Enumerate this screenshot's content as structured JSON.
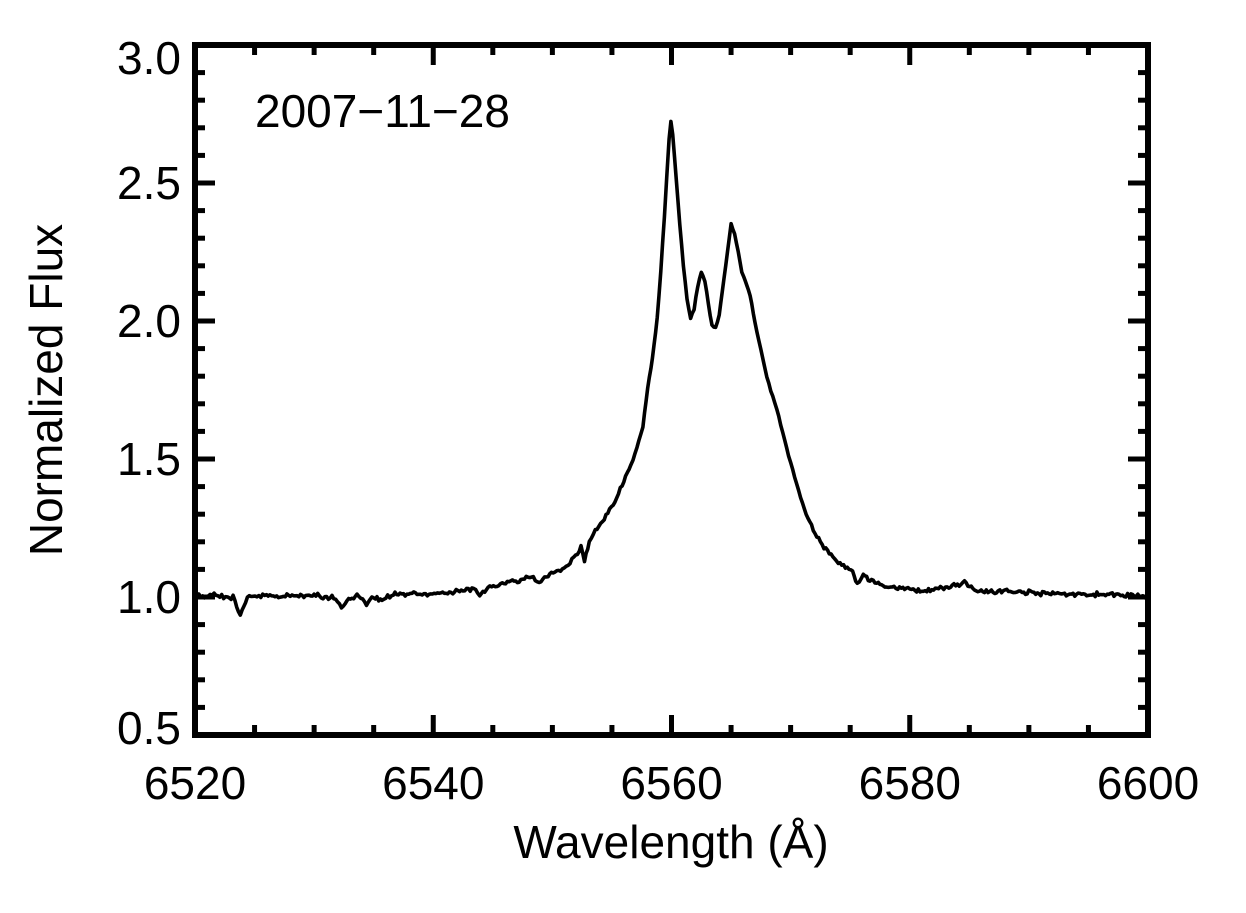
{
  "chart_data": {
    "type": "line",
    "title": "",
    "annotation": "2007−11−28",
    "xlabel": "Wavelength (Å)",
    "ylabel": "Normalized Flux",
    "xlim": [
      6520,
      6600
    ],
    "ylim": [
      0.5,
      3.0
    ],
    "x_major_ticks": [
      6520,
      6540,
      6560,
      6580,
      6600
    ],
    "x_tick_labels": [
      "6520",
      "6540",
      "6560",
      "6580",
      "6600"
    ],
    "x_minor_step": 5,
    "y_major_ticks": [
      0.5,
      1.0,
      1.5,
      2.0,
      2.5,
      3.0
    ],
    "y_tick_labels": [
      "0.5",
      "1.0",
      "1.5",
      "2.0",
      "2.5",
      "3.0"
    ],
    "y_minor_step": 0.1,
    "grid": false,
    "legend": null,
    "line_color": "#000000",
    "background_color": "#ffffff",
    "features": {
      "peaks": [
        {
          "wavelength": 6559.9,
          "flux": 2.72
        },
        {
          "wavelength": 6562.5,
          "flux": 2.18
        },
        {
          "wavelength": 6565.0,
          "flux": 2.35
        }
      ],
      "minima_between_peaks": [
        {
          "wavelength": 6561.6,
          "flux": 2.01
        },
        {
          "wavelength": 6563.6,
          "flux": 1.97
        }
      ],
      "continuum_level": 1.0
    },
    "noise": {
      "amplitude": 0.01,
      "seed": 20071128,
      "sample_step": 0.15
    },
    "series": [
      {
        "name": "spectrum",
        "anchors": [
          [
            6520.0,
            1.01
          ],
          [
            6520.8,
            1.005
          ],
          [
            6521.6,
            1.008
          ],
          [
            6522.4,
            1.002
          ],
          [
            6523.2,
            1.0
          ],
          [
            6523.8,
            0.94
          ],
          [
            6524.4,
            0.998
          ],
          [
            6525.2,
            1.003
          ],
          [
            6526.0,
            1.005
          ],
          [
            6527.0,
            1.0
          ],
          [
            6528.0,
            1.004
          ],
          [
            6529.0,
            1.006
          ],
          [
            6530.0,
            1.008
          ],
          [
            6530.9,
            1.0
          ],
          [
            6531.8,
            0.998
          ],
          [
            6532.3,
            0.962
          ],
          [
            6532.9,
            0.995
          ],
          [
            6533.6,
            1.005
          ],
          [
            6534.4,
            0.975
          ],
          [
            6535.0,
            1.002
          ],
          [
            6535.7,
            0.988
          ],
          [
            6536.5,
            1.008
          ],
          [
            6537.5,
            1.01
          ],
          [
            6538.5,
            1.012
          ],
          [
            6539.5,
            1.01
          ],
          [
            6540.5,
            1.015
          ],
          [
            6541.5,
            1.018
          ],
          [
            6542.5,
            1.02
          ],
          [
            6543.4,
            1.028
          ],
          [
            6543.9,
            1.008
          ],
          [
            6544.6,
            1.035
          ],
          [
            6545.5,
            1.045
          ],
          [
            6546.5,
            1.055
          ],
          [
            6547.5,
            1.065
          ],
          [
            6548.4,
            1.072
          ],
          [
            6548.9,
            1.05
          ],
          [
            6549.5,
            1.08
          ],
          [
            6550.2,
            1.088
          ],
          [
            6551.0,
            1.105
          ],
          [
            6551.8,
            1.14
          ],
          [
            6552.4,
            1.185
          ],
          [
            6552.7,
            1.125
          ],
          [
            6553.1,
            1.2
          ],
          [
            6553.6,
            1.24
          ],
          [
            6554.2,
            1.275
          ],
          [
            6554.8,
            1.315
          ],
          [
            6555.4,
            1.36
          ],
          [
            6556.0,
            1.42
          ],
          [
            6556.6,
            1.48
          ],
          [
            6557.1,
            1.54
          ],
          [
            6557.6,
            1.615
          ],
          [
            6558.0,
            1.76
          ],
          [
            6558.4,
            1.865
          ],
          [
            6558.8,
            2.01
          ],
          [
            6559.1,
            2.18
          ],
          [
            6559.4,
            2.38
          ],
          [
            6559.6,
            2.52
          ],
          [
            6559.8,
            2.66
          ],
          [
            6559.95,
            2.725
          ],
          [
            6560.1,
            2.68
          ],
          [
            6560.4,
            2.51
          ],
          [
            6560.7,
            2.35
          ],
          [
            6561.0,
            2.2
          ],
          [
            6561.3,
            2.08
          ],
          [
            6561.6,
            2.01
          ],
          [
            6561.9,
            2.045
          ],
          [
            6562.2,
            2.125
          ],
          [
            6562.5,
            2.175
          ],
          [
            6562.8,
            2.145
          ],
          [
            6563.1,
            2.06
          ],
          [
            6563.4,
            1.985
          ],
          [
            6563.7,
            1.972
          ],
          [
            6564.0,
            2.02
          ],
          [
            6564.4,
            2.15
          ],
          [
            6564.7,
            2.25
          ],
          [
            6565.0,
            2.355
          ],
          [
            6565.3,
            2.315
          ],
          [
            6565.6,
            2.25
          ],
          [
            6565.9,
            2.18
          ],
          [
            6566.2,
            2.145
          ],
          [
            6566.6,
            2.095
          ],
          [
            6567.0,
            1.995
          ],
          [
            6567.5,
            1.895
          ],
          [
            6568.0,
            1.795
          ],
          [
            6568.5,
            1.725
          ],
          [
            6569.0,
            1.655
          ],
          [
            6569.5,
            1.565
          ],
          [
            6570.0,
            1.485
          ],
          [
            6570.5,
            1.41
          ],
          [
            6571.0,
            1.335
          ],
          [
            6571.6,
            1.272
          ],
          [
            6572.2,
            1.218
          ],
          [
            6572.8,
            1.182
          ],
          [
            6573.4,
            1.152
          ],
          [
            6574.0,
            1.128
          ],
          [
            6574.6,
            1.108
          ],
          [
            6575.2,
            1.088
          ],
          [
            6575.6,
            1.048
          ],
          [
            6576.1,
            1.078
          ],
          [
            6576.8,
            1.062
          ],
          [
            6577.5,
            1.045
          ],
          [
            6578.2,
            1.035
          ],
          [
            6579.0,
            1.03
          ],
          [
            6580.0,
            1.028
          ],
          [
            6581.0,
            1.022
          ],
          [
            6582.0,
            1.028
          ],
          [
            6583.0,
            1.032
          ],
          [
            6584.0,
            1.045
          ],
          [
            6584.6,
            1.05
          ],
          [
            6585.3,
            1.03
          ],
          [
            6586.0,
            1.022
          ],
          [
            6587.0,
            1.018
          ],
          [
            6588.0,
            1.02
          ],
          [
            6589.0,
            1.015
          ],
          [
            6590.0,
            1.016
          ],
          [
            6591.0,
            1.012
          ],
          [
            6592.0,
            1.015
          ],
          [
            6593.0,
            1.01
          ],
          [
            6594.0,
            1.012
          ],
          [
            6595.0,
            1.01
          ],
          [
            6596.0,
            1.008
          ],
          [
            6597.0,
            1.01
          ],
          [
            6598.0,
            1.005
          ],
          [
            6599.0,
            1.005
          ],
          [
            6600.0,
            1.0
          ]
        ]
      }
    ]
  }
}
